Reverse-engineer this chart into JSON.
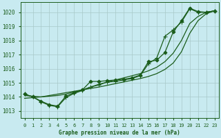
{
  "title": "Graphe pression niveau de la mer (hPa)",
  "bg_color": "#c8eaf0",
  "grid_color": "#a8c8c8",
  "line_color": "#1a5c1a",
  "xlim": [
    -0.5,
    23.5
  ],
  "ylim": [
    1012.5,
    1020.7
  ],
  "xticks": [
    0,
    1,
    2,
    3,
    4,
    5,
    6,
    7,
    8,
    9,
    10,
    11,
    12,
    13,
    14,
    15,
    16,
    17,
    18,
    19,
    20,
    21,
    22,
    23
  ],
  "yticks": [
    1013,
    1014,
    1015,
    1016,
    1017,
    1018,
    1019,
    1020
  ],
  "series": [
    {
      "x": [
        0,
        1,
        2,
        3,
        4,
        5,
        6,
        7,
        8,
        9,
        10,
        11,
        12,
        13,
        14,
        15,
        16,
        17,
        18,
        19,
        20,
        21,
        22,
        23
      ],
      "y": [
        1014.2,
        1014.0,
        1013.7,
        1013.45,
        1013.35,
        1014.05,
        1014.3,
        1014.5,
        1015.1,
        1015.1,
        1015.15,
        1015.2,
        1015.25,
        1015.35,
        1015.55,
        1016.5,
        1016.6,
        1017.15,
        1018.6,
        1019.4,
        1020.3,
        1020.05,
        1020.0,
        1020.1
      ],
      "marker": "D",
      "markersize": 2.5,
      "lw": 0.9
    },
    {
      "x": [
        0,
        1,
        2,
        3,
        4,
        5,
        6,
        7,
        8,
        9,
        10,
        11,
        12,
        13,
        14,
        15,
        16,
        17,
        18,
        19,
        20,
        21,
        22,
        23
      ],
      "y": [
        1014.2,
        1014.0,
        1013.65,
        1013.4,
        1013.3,
        1013.95,
        1014.25,
        1014.45,
        1014.7,
        1014.85,
        1015.05,
        1015.1,
        1015.2,
        1015.3,
        1015.5,
        1016.35,
        1016.75,
        1018.3,
        1018.75,
        1019.3,
        1020.25,
        1020.0,
        1020.0,
        1020.1
      ],
      "marker": "+",
      "markersize": 4,
      "lw": 0.9
    },
    {
      "x": [
        0,
        1,
        2,
        3,
        4,
        5,
        6,
        7,
        8,
        9,
        10,
        11,
        12,
        13,
        14,
        15,
        16,
        17,
        18,
        19,
        20,
        21,
        22,
        23
      ],
      "y": [
        1013.9,
        1013.95,
        1014.0,
        1014.1,
        1014.2,
        1014.3,
        1014.4,
        1014.5,
        1014.6,
        1014.7,
        1014.82,
        1014.94,
        1015.06,
        1015.18,
        1015.3,
        1015.45,
        1015.65,
        1015.95,
        1016.4,
        1017.2,
        1018.5,
        1019.4,
        1019.9,
        1020.1
      ],
      "marker": null,
      "markersize": 0,
      "lw": 0.9
    },
    {
      "x": [
        0,
        1,
        2,
        3,
        4,
        5,
        6,
        7,
        8,
        9,
        10,
        11,
        12,
        13,
        14,
        15,
        16,
        17,
        18,
        19,
        20,
        21,
        22,
        23
      ],
      "y": [
        1014.1,
        1014.05,
        1014.0,
        1014.05,
        1014.1,
        1014.2,
        1014.35,
        1014.5,
        1014.7,
        1014.9,
        1015.05,
        1015.2,
        1015.35,
        1015.5,
        1015.65,
        1015.85,
        1016.1,
        1016.5,
        1017.1,
        1018.0,
        1019.2,
        1019.7,
        1020.0,
        1020.1
      ],
      "marker": null,
      "markersize": 0,
      "lw": 0.9
    }
  ]
}
